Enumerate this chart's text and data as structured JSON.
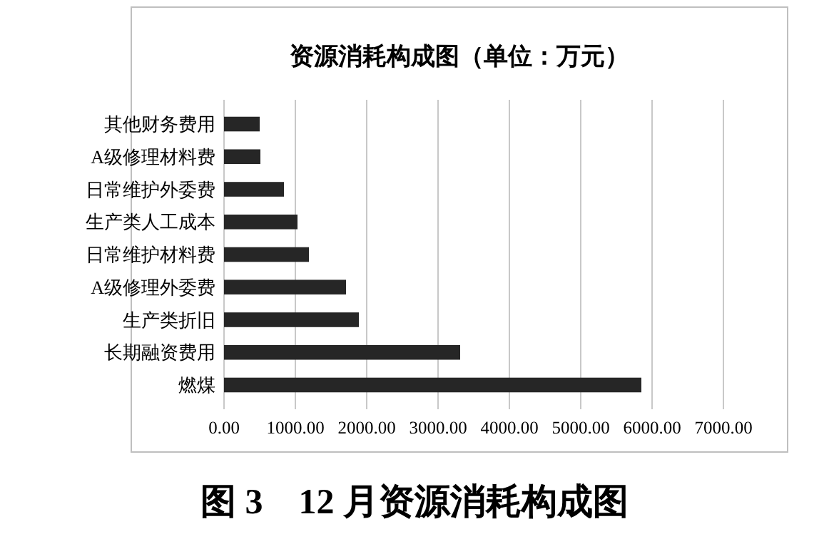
{
  "chart_data": {
    "type": "bar",
    "orientation": "horizontal",
    "title": "资源消耗构成图（单位：万元）",
    "categories": [
      "其他财务费用",
      "A级修理材料费",
      "日常维护外委费",
      "生产类人工成本",
      "日常维护材料费",
      "A级修理外委费",
      "生产类折旧",
      "长期融资费用",
      "燃煤"
    ],
    "values": [
      500,
      510,
      840,
      1030,
      1190,
      1710,
      1890,
      3310,
      5850
    ],
    "color": "#262626",
    "xlim": [
      0,
      7000
    ],
    "xticks": [
      {
        "value": 0,
        "label": "0.00"
      },
      {
        "value": 1000,
        "label": "1000.00"
      },
      {
        "value": 2000,
        "label": "2000.00"
      },
      {
        "value": 3000,
        "label": "3000.00"
      },
      {
        "value": 4000,
        "label": "4000.00"
      },
      {
        "value": 5000,
        "label": "5000.00"
      },
      {
        "value": 6000,
        "label": "6000.00"
      },
      {
        "value": 7000,
        "label": "7000.00"
      }
    ],
    "grid": "x",
    "annotations": [
      "图 3　12 月资源消耗构成图"
    ]
  }
}
